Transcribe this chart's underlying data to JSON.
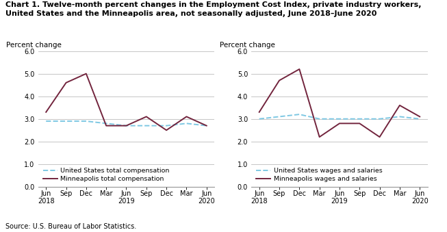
{
  "title_line1": "Chart 1. Twelve-month percent changes in the Employment Cost Index, private industry workers,",
  "title_line2": "United States and the Minneapolis area, not seasonally adjusted, June 2018–June 2020",
  "source": "Source: U.S. Bureau of Labor Statistics.",
  "x_positions": [
    0,
    1,
    2,
    3,
    4,
    5,
    6,
    7,
    8
  ],
  "x_labels": [
    "Jun\n2018",
    "Sep",
    "Dec",
    "Mar",
    "Jun\n2019",
    "Sep",
    "Dec",
    "Mar",
    "Jun\n2020"
  ],
  "left_chart": {
    "ylabel": "Percent change",
    "us_total_comp": [
      2.9,
      2.9,
      2.9,
      2.8,
      2.7,
      2.7,
      2.7,
      2.8,
      2.7
    ],
    "mpls_total_comp": [
      3.3,
      4.6,
      5.0,
      2.7,
      2.7,
      3.1,
      2.5,
      3.1,
      2.7
    ],
    "us_label": "United States total compensation",
    "mpls_label": "Minneapolis total compensation",
    "ylim": [
      0.0,
      6.0
    ],
    "yticks": [
      0.0,
      1.0,
      2.0,
      3.0,
      4.0,
      5.0,
      6.0
    ]
  },
  "right_chart": {
    "ylabel": "Percent change",
    "us_wages": [
      3.0,
      3.1,
      3.2,
      3.0,
      3.0,
      3.0,
      3.0,
      3.1,
      3.0
    ],
    "mpls_wages": [
      3.3,
      4.7,
      5.2,
      2.2,
      2.8,
      2.8,
      2.2,
      3.6,
      3.1
    ],
    "us_label": "United States wages and salaries",
    "mpls_label": "Minneapolis wages and salaries",
    "ylim": [
      0.0,
      6.0
    ],
    "yticks": [
      0.0,
      1.0,
      2.0,
      3.0,
      4.0,
      5.0,
      6.0
    ]
  },
  "us_color": "#7ec8e3",
  "mpls_color": "#72243d",
  "linewidth": 1.4,
  "grid_color": "#bbbbbb",
  "background_color": "#ffffff",
  "title_fontsize": 8.0,
  "label_fontsize": 7.5,
  "tick_fontsize": 7.0,
  "legend_fontsize": 6.8,
  "source_fontsize": 7.0
}
